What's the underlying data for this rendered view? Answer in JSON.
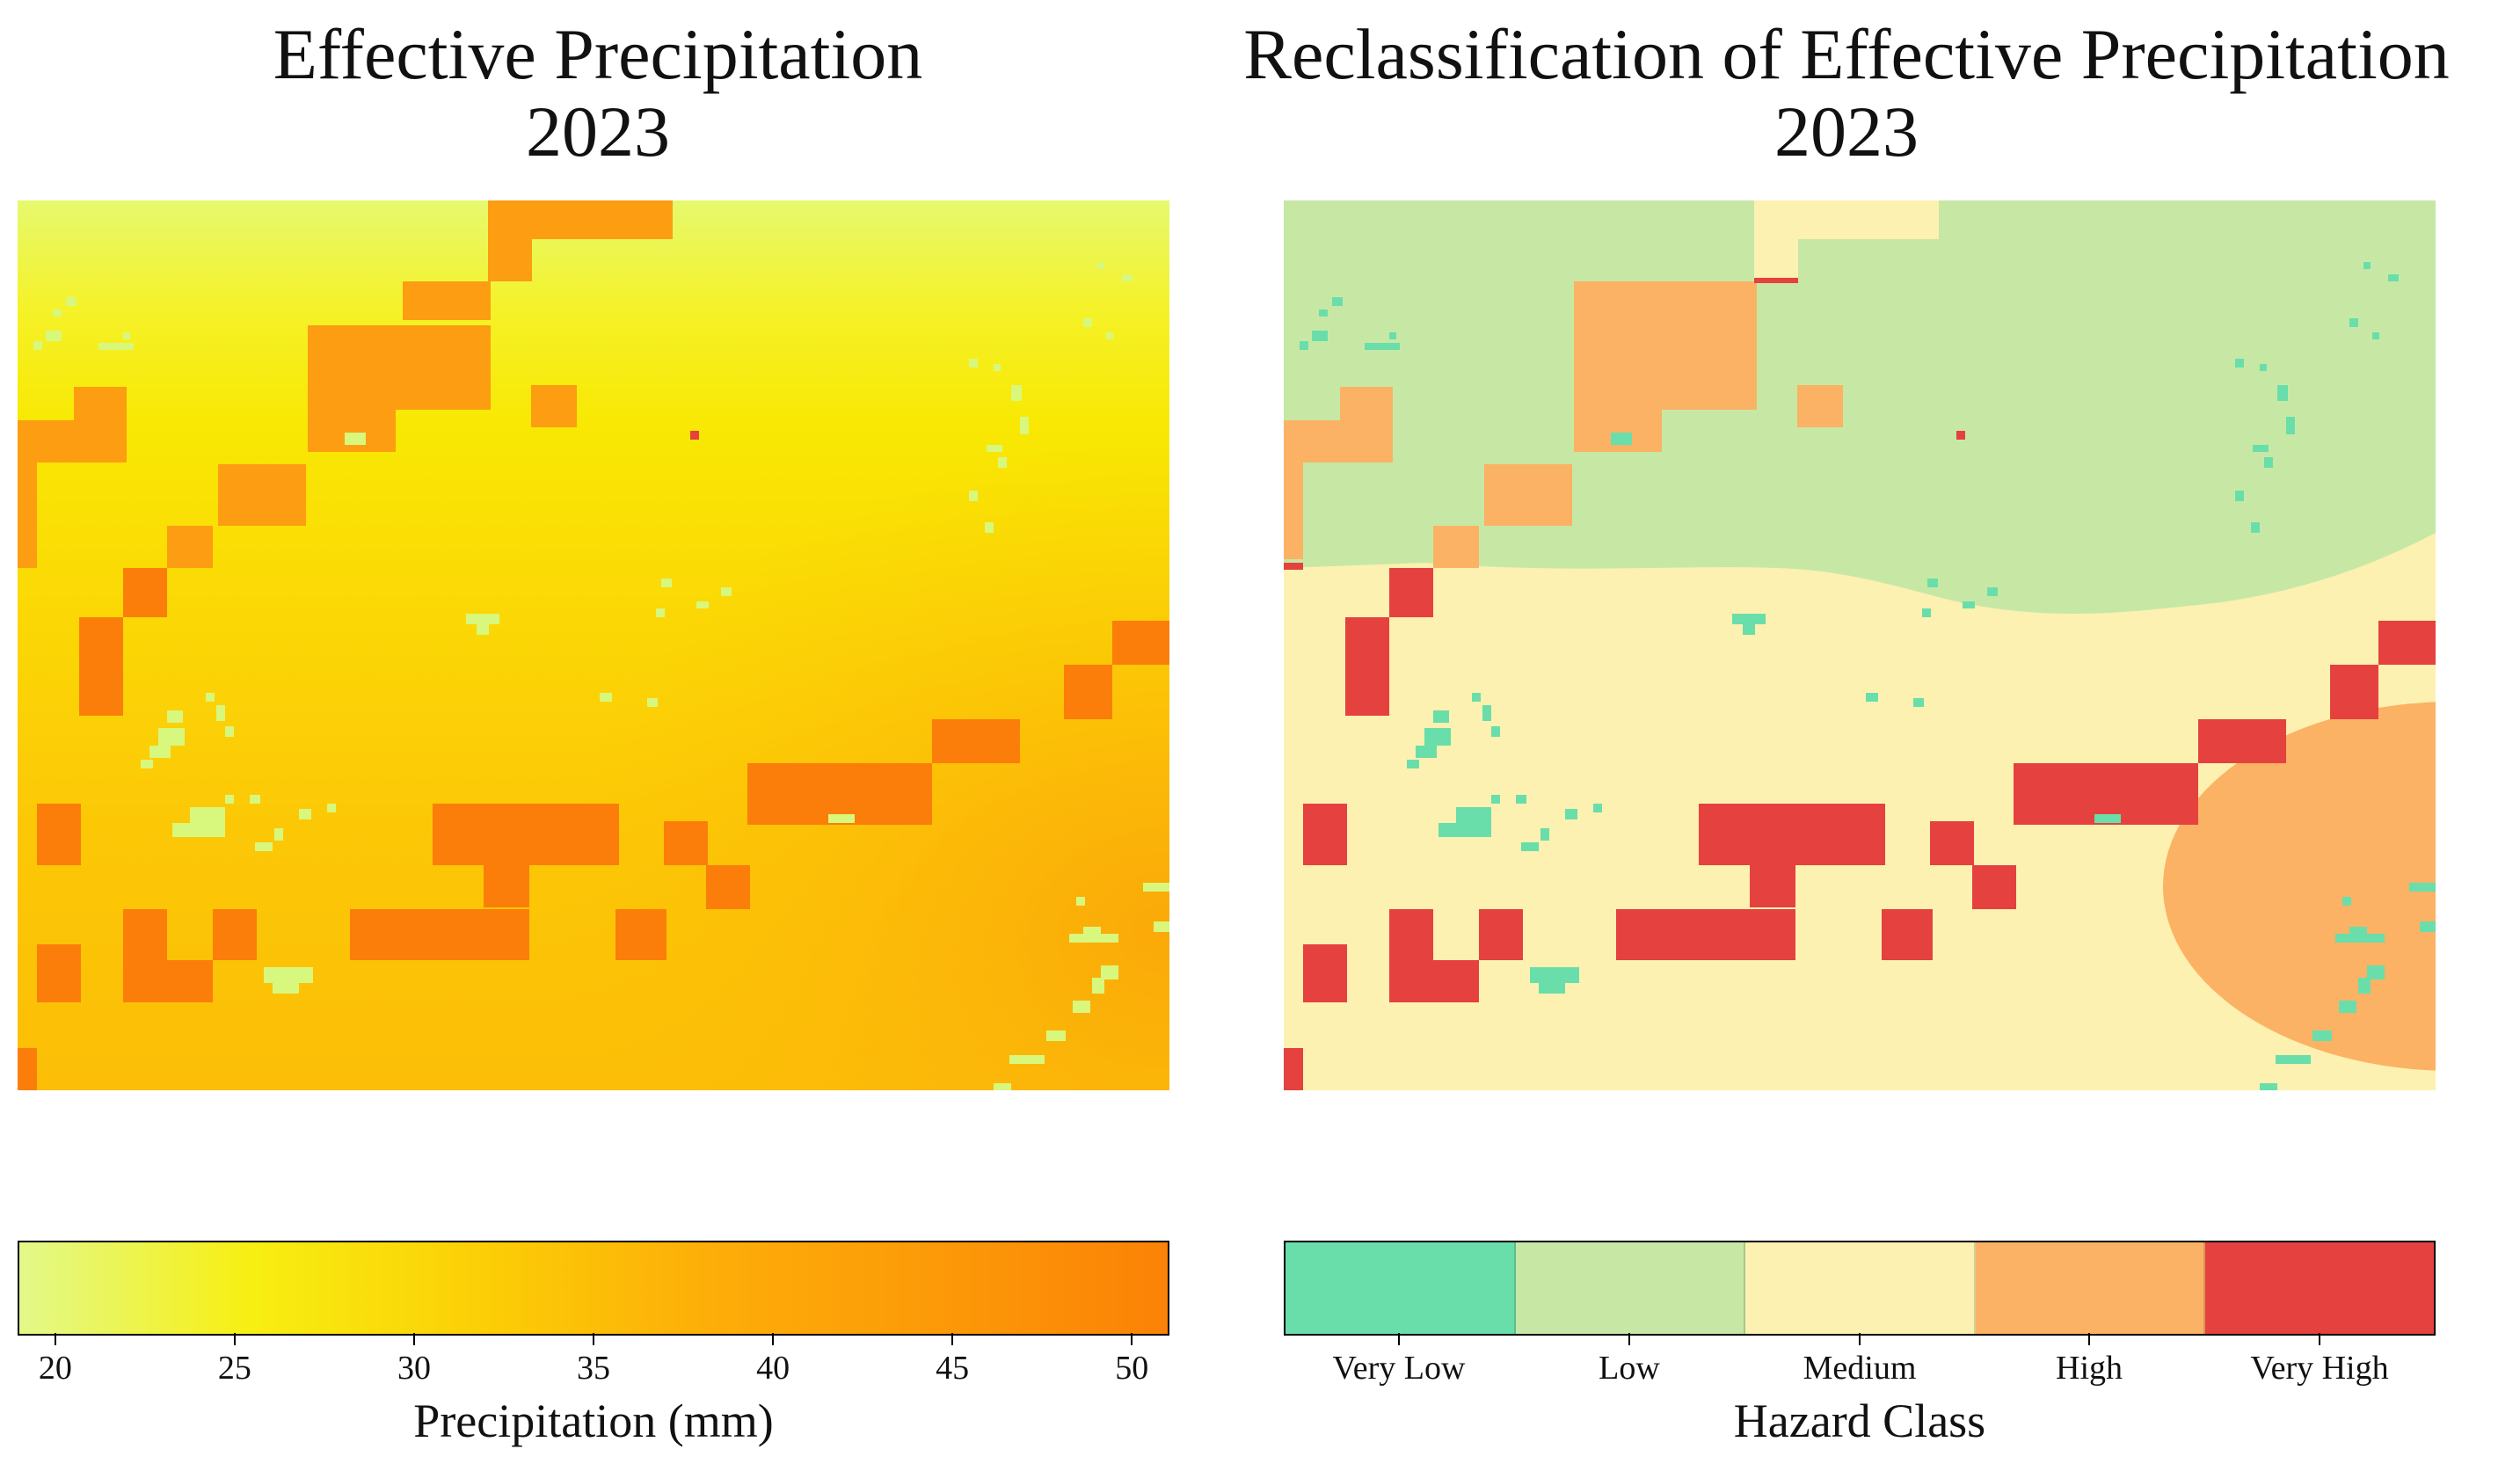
{
  "left_panel": {
    "title_line1": "Effective Precipitation",
    "title_line2": "2023",
    "colorbar": {
      "ticks": [
        "20",
        "25",
        "30",
        "35",
        "40",
        "45",
        "50"
      ],
      "tick_values": [
        20,
        25,
        30,
        35,
        40,
        45,
        50
      ],
      "range": [
        19,
        51
      ],
      "label": "Precipitation (mm)",
      "colors": [
        "#e2f98a",
        "#f7ef12",
        "#fccf06",
        "#fdae08",
        "#fc9a08",
        "#fb8206"
      ]
    }
  },
  "right_panel": {
    "title_line1": "Reclassification of Effective Precipitation",
    "title_line2": "2023",
    "legend": {
      "label": "Hazard Class",
      "classes": [
        {
          "name": "Very Low",
          "color": "#69deab"
        },
        {
          "name": "Low",
          "color": "#c7e8a4"
        },
        {
          "name": "Medium",
          "color": "#fcf1b0"
        },
        {
          "name": "High",
          "color": "#fcb264"
        },
        {
          "name": "Very High",
          "color": "#e5413f"
        }
      ]
    }
  },
  "raster_colors": {
    "very_low": "#69deab",
    "low": "#c7e8a4",
    "medium": "#fcf1b0",
    "high": "#fcb264",
    "very_high": "#e5413f",
    "cell_orange": "#fc9d12",
    "cell_dark_orange": "#fb7e0a",
    "speck_light": "#d8f77d"
  }
}
